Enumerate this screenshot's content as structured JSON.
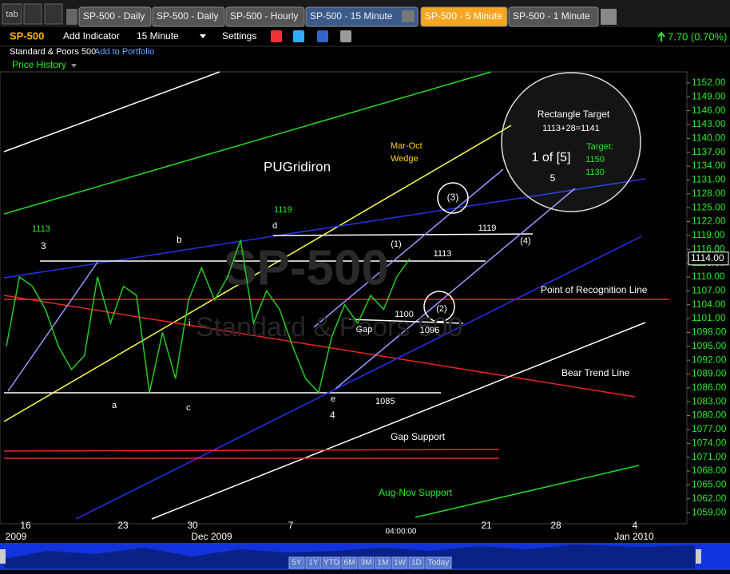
{
  "tabs": {
    "menu": "tab",
    "items": [
      "SP-500 - Daily",
      "SP-500 - Daily",
      "SP-500 - Hourly",
      "SP-500 - 15 Minute",
      "SP-500 - 5 Minute",
      "SP-500 - 1 Minute"
    ],
    "active": 3
  },
  "toolbar": {
    "symbol": "SP-500",
    "add_indicator": "Add Indicator",
    "interval": "15 Minute",
    "settings": "Settings",
    "change": "7.70 (0.70%)"
  },
  "header": {
    "name": "Standard & Poors 500",
    "add_to_portfolio": "Add to Portfolio",
    "price_history": "Price History"
  },
  "chart_data": {
    "type": "line",
    "title": "PUGridiron",
    "watermark": [
      "SP-500",
      "Standard & Poors 500"
    ],
    "ylim": [
      1056.6,
      1154.4
    ],
    "yticks": [
      {
        "value": 1152,
        "label": "1152.00"
      },
      {
        "value": 1149,
        "label": "1149.00"
      },
      {
        "value": 1146,
        "label": "1146.00"
      },
      {
        "value": 1143,
        "label": "1143.00"
      },
      {
        "value": 1140,
        "label": "1140.00"
      },
      {
        "value": 1137,
        "label": "1137.00"
      },
      {
        "value": 1134,
        "label": "1134.00"
      },
      {
        "value": 1131,
        "label": "1131.00"
      },
      {
        "value": 1128,
        "label": "1128.00"
      },
      {
        "value": 1125,
        "label": "1125.00"
      },
      {
        "value": 1122,
        "label": "1122.00"
      },
      {
        "value": 1119,
        "label": "1119.00"
      },
      {
        "value": 1116,
        "label": "1116.00"
      },
      {
        "value": 1113,
        "label": "1113.00"
      },
      {
        "value": 1110,
        "label": "1110.00"
      },
      {
        "value": 1107,
        "label": "1107.00"
      },
      {
        "value": 1104,
        "label": "1104.00"
      },
      {
        "value": 1101,
        "label": "1101.00"
      },
      {
        "value": 1098,
        "label": "1098.00"
      },
      {
        "value": 1095,
        "label": "1095.00"
      },
      {
        "value": 1092,
        "label": "1092.00"
      },
      {
        "value": 1089,
        "label": "1089.00"
      },
      {
        "value": 1086,
        "label": "1086.00"
      },
      {
        "value": 1083,
        "label": "1083.00"
      },
      {
        "value": 1080,
        "label": "1080.00"
      },
      {
        "value": 1077,
        "label": "1077.00"
      },
      {
        "value": 1074,
        "label": "1074.00"
      },
      {
        "value": 1071,
        "label": "1071.00"
      },
      {
        "value": 1068,
        "label": "1068.00"
      },
      {
        "value": 1065,
        "label": "1065.00"
      },
      {
        "value": 1062,
        "label": "1062.00"
      },
      {
        "value": 1059,
        "label": "1059.00"
      }
    ],
    "last_price": {
      "value": 1114,
      "label": "1114.00"
    },
    "x_labels": [
      "16",
      "23",
      "30",
      "7",
      "21",
      "28",
      "4"
    ],
    "period_labels": [
      "2009",
      "Dec 2009",
      "Jan 2010"
    ],
    "time_label": "04:00:00",
    "series": [
      {
        "name": "SP-500",
        "color": "#22cc22",
        "values": [
          1095,
          1110,
          1108,
          1103,
          1095,
          1090,
          1093,
          1110,
          1100,
          1108,
          1106,
          1085,
          1098,
          1088,
          1105,
          1112,
          1105,
          1110,
          1118,
          1100,
          1107,
          1103,
          1095,
          1088,
          1085,
          1097,
          1104,
          1100,
          1106,
          1103,
          1110,
          1114
        ]
      }
    ],
    "annotations": [
      "1113",
      "3",
      "b",
      "1119",
      "d",
      "a",
      "c",
      "i",
      "e",
      "4",
      "1085",
      "Mar-Oct",
      "Wedge",
      "(3)",
      "(1)",
      "1119",
      "1113",
      "(4)",
      "(2)",
      "1100",
      "1096",
      "Gap",
      "Rectangle Target",
      "1113+28=1141",
      "1 of [5]",
      "Target:",
      "1150",
      "1130",
      "5",
      "Point of Recognition Line",
      "Bear Trend Line",
      "Gap Support",
      "Aug-Nov Support"
    ]
  },
  "range_buttons": [
    "5Y",
    "1Y",
    "YTD",
    "6M",
    "3M",
    "1M",
    "1W",
    "1D",
    "Today"
  ]
}
